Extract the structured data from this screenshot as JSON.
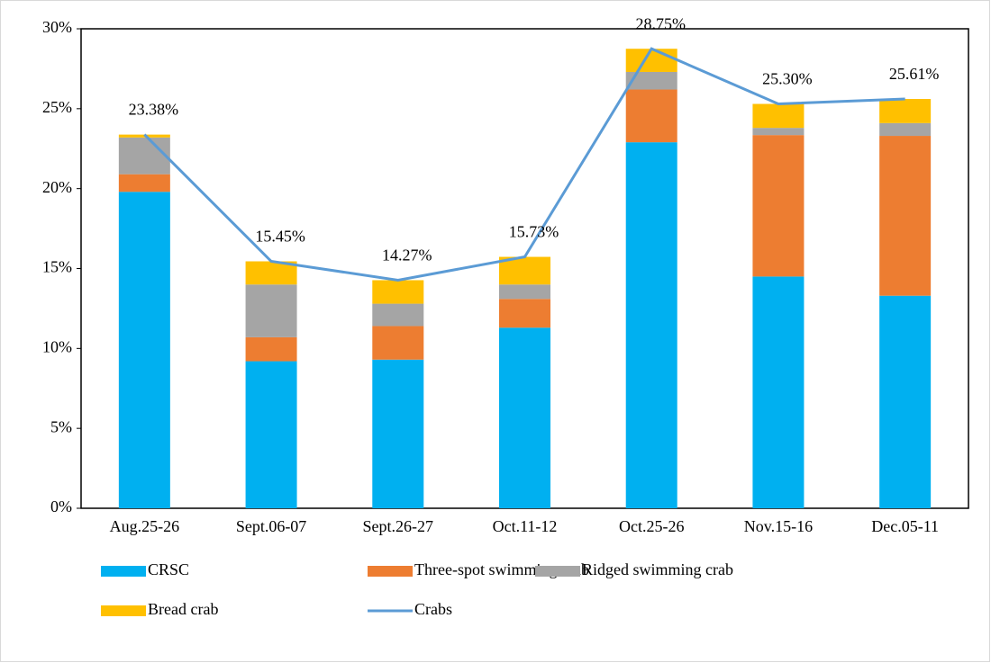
{
  "chart_data": {
    "type": "bar_line",
    "categories": [
      "Aug.25-26",
      "Sept.06-07",
      "Sept.26-27",
      "Oct.11-12",
      "Oct.25-26",
      "Nov.15-16",
      "Dec.05-11"
    ],
    "series": [
      {
        "name": "CRSC",
        "color": "#00b0f0",
        "type": "bar",
        "values": [
          19.8,
          9.2,
          9.3,
          11.3,
          22.9,
          14.5,
          13.3
        ]
      },
      {
        "name": "Three-spot swimming crab",
        "color": "#ed7d31",
        "type": "bar",
        "values": [
          1.1,
          1.5,
          2.1,
          1.8,
          3.3,
          8.85,
          10.0
        ]
      },
      {
        "name": "Ridged swimming crab",
        "color": "#a5a5a5",
        "type": "bar",
        "values": [
          2.3,
          3.3,
          1.4,
          0.9,
          1.1,
          0.45,
          0.8
        ]
      },
      {
        "name": "Bread crab",
        "color": "#ffc000",
        "type": "bar",
        "values": [
          0.18,
          1.45,
          1.47,
          1.73,
          1.45,
          1.5,
          1.51
        ]
      },
      {
        "name": "Crabs",
        "color": "#5b9bd5",
        "type": "line",
        "values": [
          23.38,
          15.45,
          14.27,
          15.73,
          28.75,
          25.3,
          25.61
        ],
        "value_labels": [
          "23.38%",
          "15.45%",
          "14.27%",
          "15.73%",
          "28.75%",
          "25.30%",
          "25.61%"
        ]
      }
    ],
    "ylim": [
      0,
      30
    ],
    "yticks": [
      {
        "value": 0,
        "label": "0%"
      },
      {
        "value": 5,
        "label": "5%"
      },
      {
        "value": 10,
        "label": "10%"
      },
      {
        "value": 15,
        "label": "15%"
      },
      {
        "value": 20,
        "label": "20%"
      },
      {
        "value": 25,
        "label": "25%"
      },
      {
        "value": 30,
        "label": "30%"
      }
    ],
    "stacked": true,
    "grid": false,
    "legend": "bottom"
  }
}
